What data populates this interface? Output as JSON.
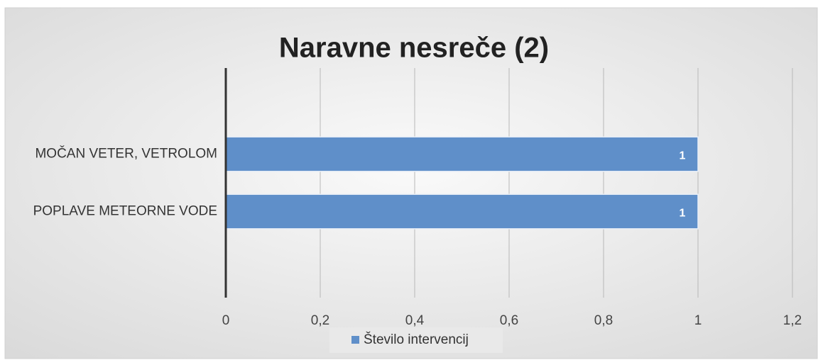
{
  "chart_data": {
    "type": "bar",
    "orientation": "horizontal",
    "title": "Naravne nesreče (2)",
    "categories": [
      "MOČAN VETER, VETROLOM",
      "POPLAVE METEORNE VODE"
    ],
    "series": [
      {
        "name": "Število intervencij",
        "color": "#5f8fc9",
        "values": [
          1,
          1
        ]
      }
    ],
    "xlim": [
      0,
      1.2
    ],
    "xticks": [
      0,
      {
        "value": 0.2,
        "label": "0,2"
      },
      {
        "value": 0.4,
        "label": "0,4"
      },
      {
        "value": 0.6,
        "label": "0,6"
      },
      {
        "value": 0.8,
        "label": "0,8"
      },
      1,
      {
        "value": 1.2,
        "label": "1,2"
      }
    ],
    "grid": true,
    "legend": "bottom"
  }
}
